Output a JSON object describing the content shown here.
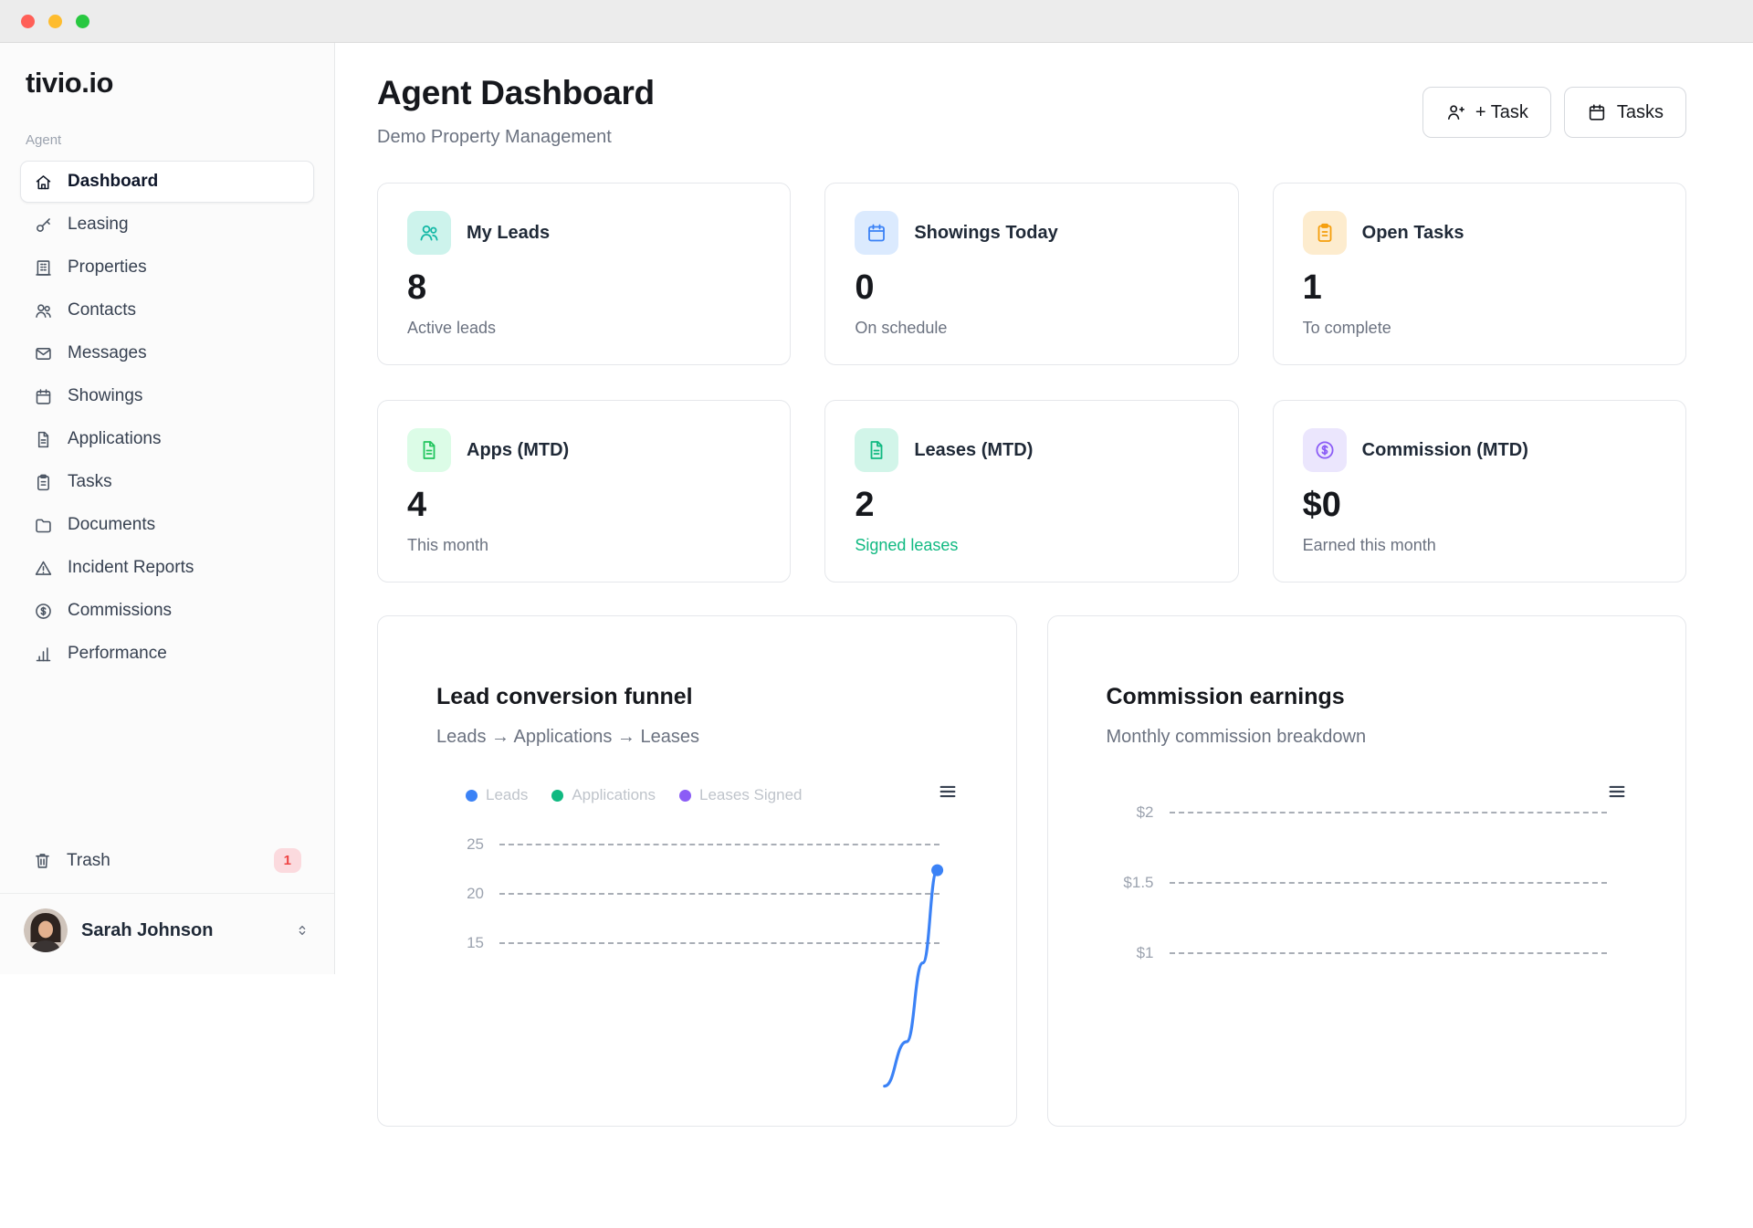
{
  "logo": {
    "part1": "tivio",
    "dot": ".",
    "part2": "io"
  },
  "sidebar": {
    "section_label": "Agent",
    "items": [
      {
        "label": "Dashboard",
        "active": true
      },
      {
        "label": "Leasing"
      },
      {
        "label": "Properties"
      },
      {
        "label": "Contacts"
      },
      {
        "label": "Messages"
      },
      {
        "label": "Showings"
      },
      {
        "label": "Applications"
      },
      {
        "label": "Tasks"
      },
      {
        "label": "Documents"
      },
      {
        "label": "Incident Reports"
      },
      {
        "label": "Commissions"
      },
      {
        "label": "Performance"
      }
    ],
    "trash": {
      "label": "Trash",
      "badge": "1"
    },
    "user": {
      "name": "Sarah Johnson"
    }
  },
  "header": {
    "title": "Agent Dashboard",
    "subtitle": "Demo Property Management",
    "buttons": [
      {
        "label": "+ Task"
      },
      {
        "label": "Tasks"
      }
    ]
  },
  "stats": [
    {
      "label": "My Leads",
      "value": "8",
      "sub": "Active leads",
      "accent": "#14b8a6",
      "accent_bg": "#cdf3ec"
    },
    {
      "label": "Showings Today",
      "value": "0",
      "sub": "On schedule",
      "accent": "#3b82f6",
      "accent_bg": "#dbeafe"
    },
    {
      "label": "Open Tasks",
      "value": "1",
      "sub": "To complete",
      "accent": "#f59e0b",
      "accent_bg": "#fdecce"
    },
    {
      "label": "Apps (MTD)",
      "value": "4",
      "sub": "This month",
      "accent": "#22c55e",
      "accent_bg": "#dcfce7"
    },
    {
      "label": "Leases (MTD)",
      "value": "2",
      "sub": "Signed leases",
      "sub_color": "#10b981",
      "accent": "#10b981",
      "accent_bg": "#d2f5e9"
    },
    {
      "label": "Commission (MTD)",
      "value": "$0",
      "sub": "Earned this month",
      "accent": "#8b5cf6",
      "accent_bg": "#ebe6fd"
    }
  ],
  "chart_data": [
    {
      "type": "line",
      "title": "Lead conversion funnel",
      "subtitle": "Leads → Applications → Leases",
      "legend": [
        {
          "label": "Leads",
          "color": "#3b82f6"
        },
        {
          "label": "Applications",
          "color": "#10b981"
        },
        {
          "label": "Leases Signed",
          "color": "#8b5cf6"
        }
      ],
      "grid": "horizontal-dashed",
      "y_top": 25,
      "y_step": 5,
      "yticks": [
        "25",
        "20",
        "15"
      ],
      "series": [
        {
          "name": "Leads",
          "color": "#3b82f6",
          "points": [
            {
              "x": 0.875,
              "y": 0.5
            },
            {
              "x": 0.925,
              "y": 5
            },
            {
              "x": 0.962,
              "y": 13
            },
            {
              "x": 0.995,
              "y": 22.4
            }
          ]
        }
      ]
    },
    {
      "type": "line",
      "title": "Commission earnings",
      "subtitle": "Monthly commission breakdown",
      "legend": [],
      "grid": "horizontal-dashed",
      "y_top": 2,
      "y_step": 0.5,
      "yticks": [
        "$2",
        "$1.5",
        "$1"
      ],
      "series": []
    }
  ]
}
